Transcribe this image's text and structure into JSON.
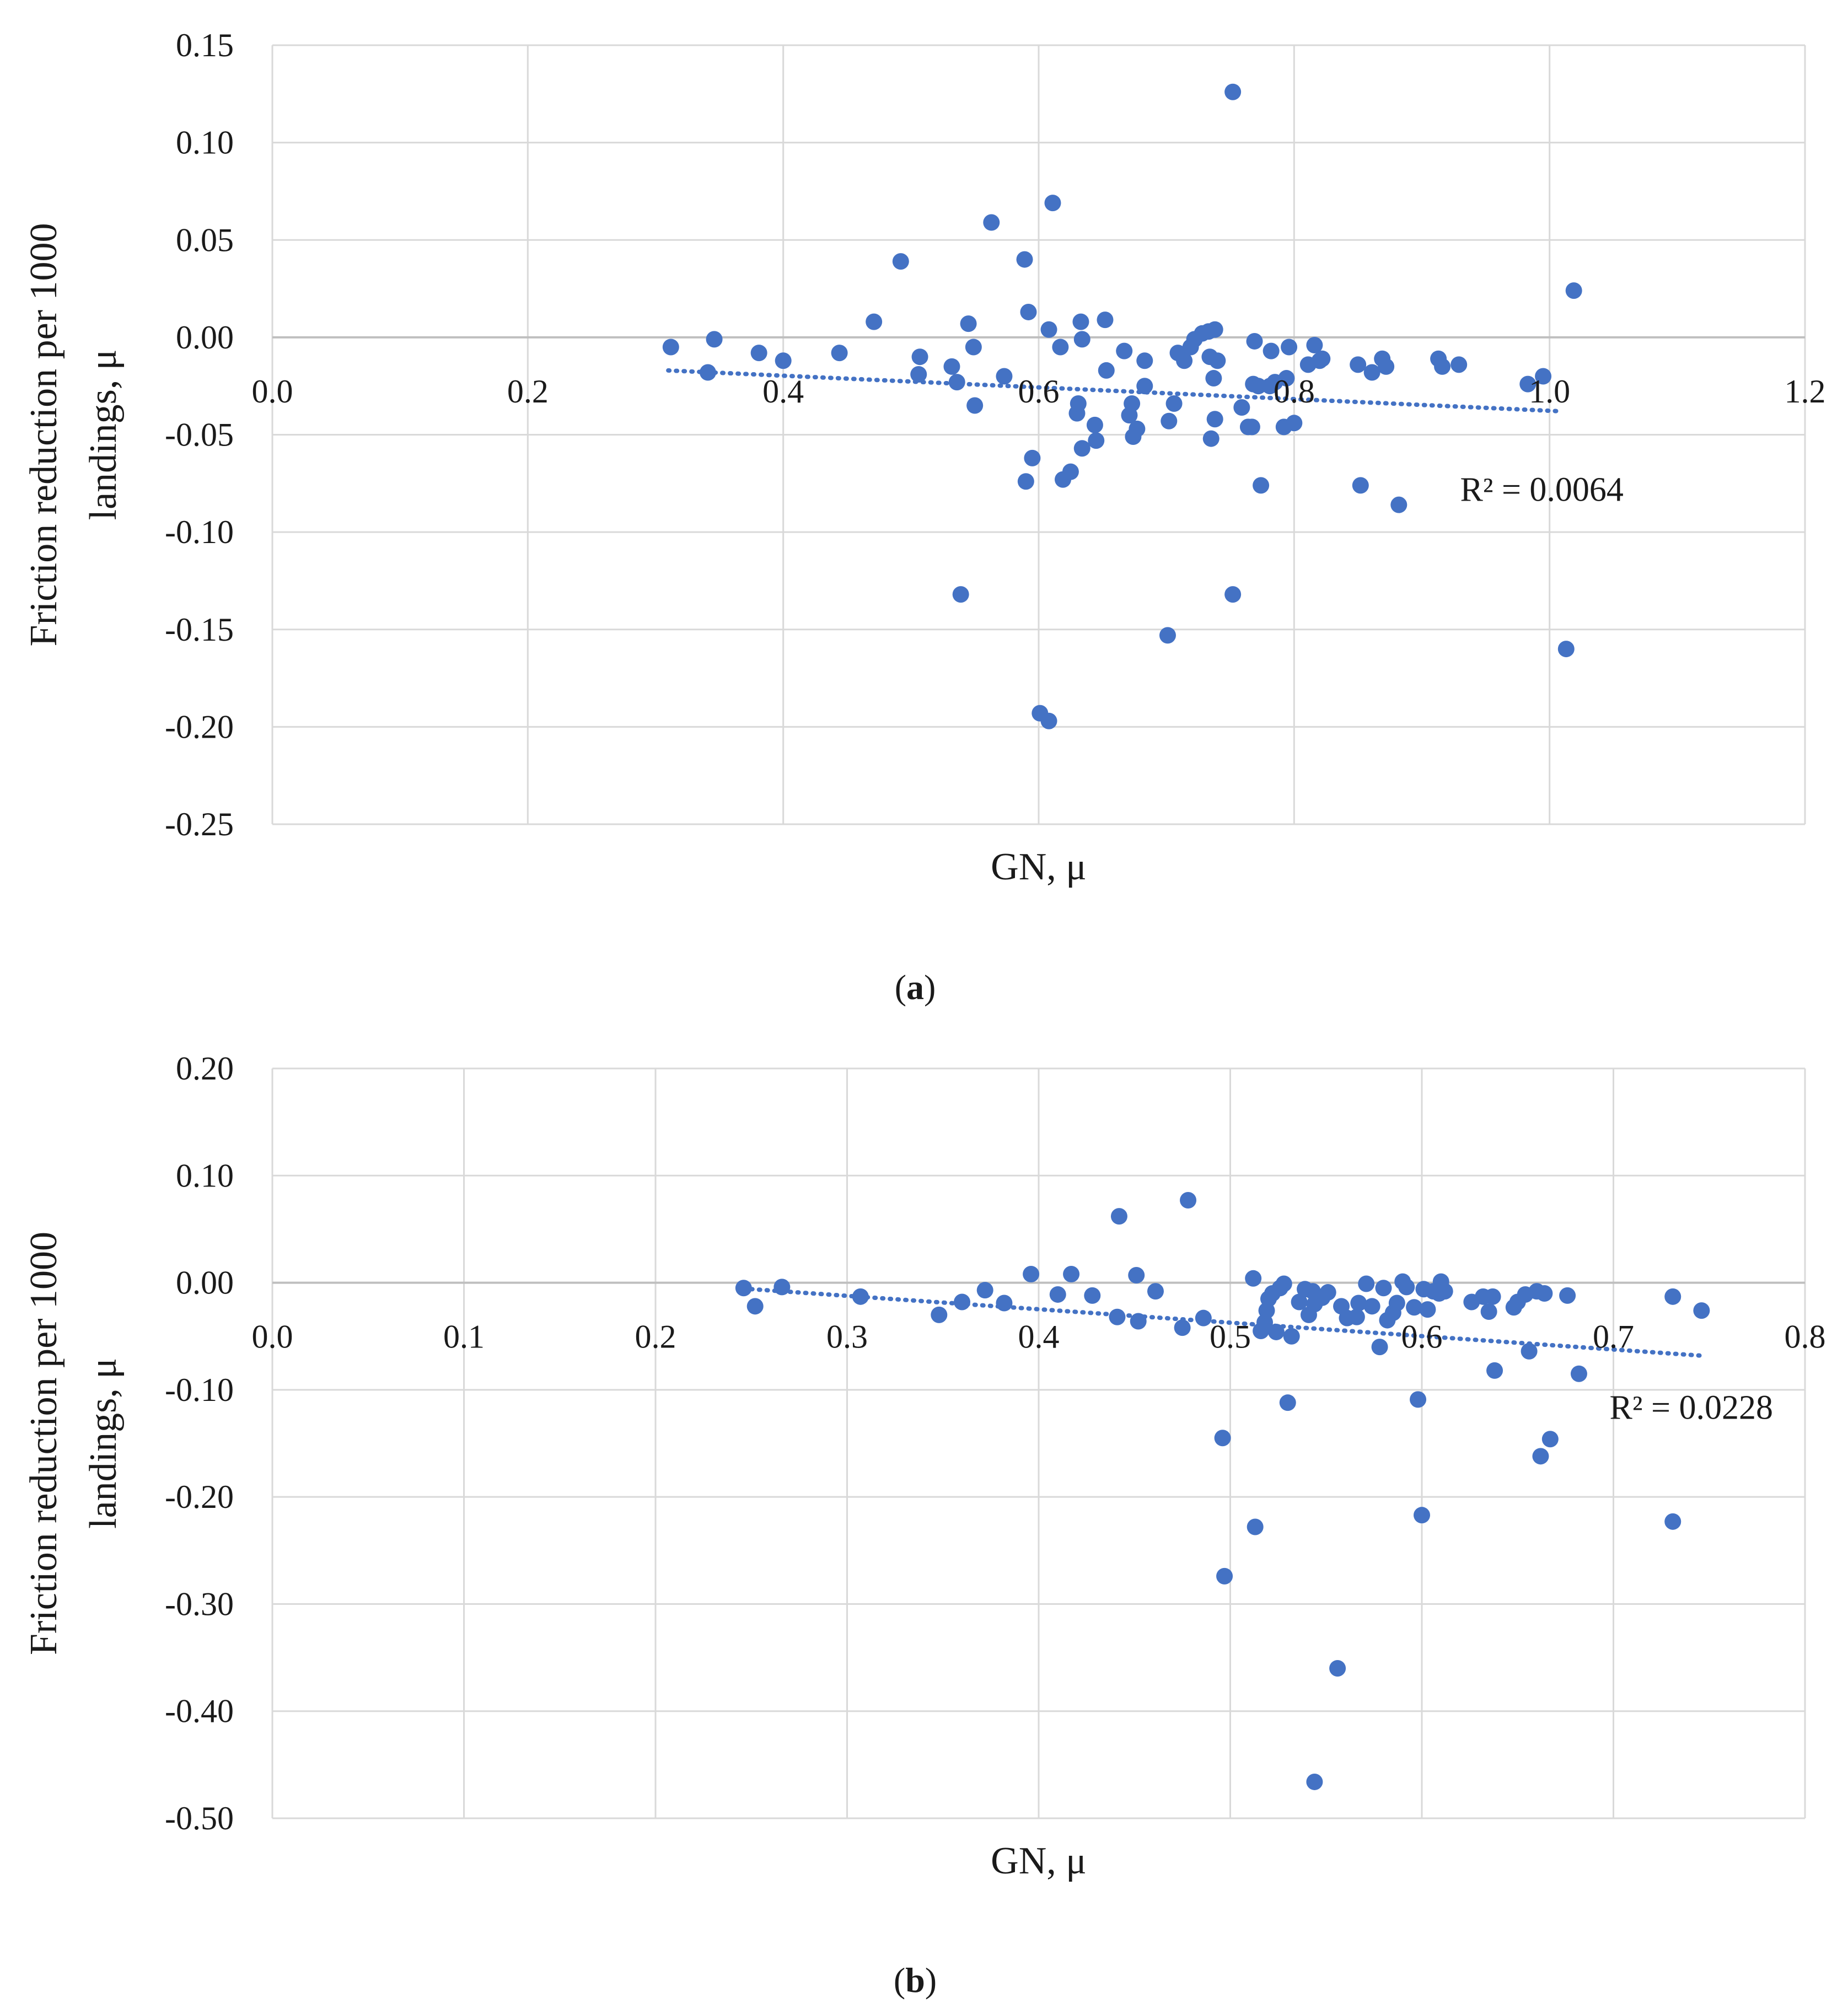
{
  "chart_data": [
    {
      "type": "scatter",
      "panel_label": "a",
      "xlabel": "GN, μ",
      "ylabel_line1": "Friction reduction per 1000",
      "ylabel_line2": "landings, μ",
      "xlim": [
        0,
        1.2
      ],
      "ylim": [
        -0.25,
        0.15
      ],
      "x_ticks": [
        0.0,
        0.2,
        0.4,
        0.6,
        0.8,
        1.0,
        1.2
      ],
      "x_tick_labels": [
        "0.0",
        "0.2",
        "0.4",
        "0.6",
        "0.8",
        "1.0",
        "1.2"
      ],
      "y_ticks": [
        0.15,
        0.1,
        0.05,
        0.0,
        -0.05,
        -0.1,
        -0.15,
        -0.2,
        -0.25
      ],
      "y_tick_labels": [
        "0.15",
        "0.10",
        "0.05",
        "0.00",
        "-0.05",
        "-0.10",
        "-0.15",
        "-0.20",
        "-0.25"
      ],
      "grid": true,
      "trendline": {
        "x": [
          0.31,
          1.01
        ],
        "y": [
          -0.017,
          -0.038
        ]
      },
      "r2_label": "R² = 0.0064",
      "r2_anchor": [
        0.93,
        -0.084
      ],
      "points": [
        [
          0.312,
          -0.005
        ],
        [
          0.346,
          -0.001
        ],
        [
          0.341,
          -0.018
        ],
        [
          0.381,
          -0.008
        ],
        [
          0.4,
          -0.012
        ],
        [
          0.444,
          -0.008
        ],
        [
          0.492,
          0.039
        ],
        [
          0.471,
          0.008
        ],
        [
          0.507,
          -0.01
        ],
        [
          0.506,
          -0.019
        ],
        [
          0.532,
          -0.015
        ],
        [
          0.536,
          -0.023
        ],
        [
          0.539,
          -0.132
        ],
        [
          0.545,
          0.007
        ],
        [
          0.549,
          -0.005
        ],
        [
          0.55,
          -0.035
        ],
        [
          0.563,
          0.059
        ],
        [
          0.573,
          -0.02
        ],
        [
          0.589,
          0.04
        ],
        [
          0.592,
          0.013
        ],
        [
          0.59,
          -0.074
        ],
        [
          0.595,
          -0.062
        ],
        [
          0.601,
          -0.193
        ],
        [
          0.608,
          -0.197
        ],
        [
          0.611,
          0.069
        ],
        [
          0.608,
          0.004
        ],
        [
          0.617,
          -0.005
        ],
        [
          0.619,
          -0.073
        ],
        [
          0.625,
          -0.069
        ],
        [
          0.63,
          -0.039
        ],
        [
          0.631,
          -0.034
        ],
        [
          0.633,
          0.008
        ],
        [
          0.634,
          -0.001
        ],
        [
          0.634,
          -0.057
        ],
        [
          0.644,
          -0.045
        ],
        [
          0.645,
          -0.053
        ],
        [
          0.652,
          0.009
        ],
        [
          0.653,
          -0.017
        ],
        [
          0.667,
          -0.007
        ],
        [
          0.671,
          -0.04
        ],
        [
          0.673,
          -0.034
        ],
        [
          0.674,
          -0.051
        ],
        [
          0.677,
          -0.047
        ],
        [
          0.683,
          -0.025
        ],
        [
          0.683,
          -0.012
        ],
        [
          0.701,
          -0.153
        ],
        [
          0.702,
          -0.043
        ],
        [
          0.706,
          -0.034
        ],
        [
          0.709,
          -0.008
        ],
        [
          0.714,
          -0.012
        ],
        [
          0.719,
          -0.005
        ],
        [
          0.722,
          -0.001
        ],
        [
          0.728,
          0.002
        ],
        [
          0.733,
          0.003
        ],
        [
          0.734,
          -0.01
        ],
        [
          0.735,
          -0.052
        ],
        [
          0.738,
          0.004
        ],
        [
          0.737,
          -0.021
        ],
        [
          0.738,
          -0.042
        ],
        [
          0.74,
          -0.012
        ],
        [
          0.752,
          0.126
        ],
        [
          0.752,
          -0.132
        ],
        [
          0.759,
          -0.036
        ],
        [
          0.764,
          -0.046
        ],
        [
          0.767,
          -0.046
        ],
        [
          0.768,
          -0.024
        ],
        [
          0.769,
          -0.002
        ],
        [
          0.772,
          -0.025
        ],
        [
          0.774,
          -0.076
        ],
        [
          0.781,
          -0.025
        ],
        [
          0.782,
          -0.007
        ],
        [
          0.785,
          -0.023
        ],
        [
          0.792,
          -0.046
        ],
        [
          0.794,
          -0.021
        ],
        [
          0.796,
          -0.005
        ],
        [
          0.8,
          -0.044
        ],
        [
          0.811,
          -0.014
        ],
        [
          0.816,
          -0.004
        ],
        [
          0.82,
          -0.012
        ],
        [
          0.822,
          -0.011
        ],
        [
          0.852,
          -0.076
        ],
        [
          0.85,
          -0.014
        ],
        [
          0.861,
          -0.018
        ],
        [
          0.869,
          -0.011
        ],
        [
          0.872,
          -0.015
        ],
        [
          0.882,
          -0.086
        ],
        [
          0.913,
          -0.011
        ],
        [
          0.916,
          -0.015
        ],
        [
          0.929,
          -0.014
        ],
        [
          0.983,
          -0.024
        ],
        [
          0.995,
          -0.02
        ],
        [
          1.013,
          -0.16
        ],
        [
          1.019,
          0.024
        ]
      ]
    },
    {
      "type": "scatter",
      "panel_label": "b",
      "xlabel": "GN, μ",
      "ylabel_line1": "Friction reduction per 1000",
      "ylabel_line2": "landings, μ",
      "xlim": [
        0,
        0.8
      ],
      "ylim": [
        -0.5,
        0.2
      ],
      "x_ticks": [
        0.0,
        0.1,
        0.2,
        0.3,
        0.4,
        0.5,
        0.6,
        0.7,
        0.8
      ],
      "x_tick_labels": [
        "0.0",
        "0.1",
        "0.2",
        "0.3",
        "0.4",
        "0.5",
        "0.6",
        "0.7",
        "0.8"
      ],
      "y_ticks": [
        0.2,
        0.1,
        0.0,
        -0.1,
        -0.2,
        -0.3,
        -0.4,
        -0.5
      ],
      "y_tick_labels": [
        "0.20",
        "0.10",
        "0.00",
        "-0.10",
        "-0.20",
        "-0.30",
        "-0.40",
        "-0.50"
      ],
      "grid": true,
      "trendline": {
        "x": [
          0.25,
          0.745
        ],
        "y": [
          -0.006,
          -0.068
        ]
      },
      "r2_label": "R² = 0.0228",
      "r2_anchor": [
        0.698,
        -0.127
      ],
      "points": [
        [
          0.246,
          -0.005
        ],
        [
          0.252,
          -0.022
        ],
        [
          0.266,
          -0.004
        ],
        [
          0.307,
          -0.013
        ],
        [
          0.348,
          -0.03
        ],
        [
          0.36,
          -0.018
        ],
        [
          0.372,
          -0.007
        ],
        [
          0.382,
          -0.019
        ],
        [
          0.396,
          0.008
        ],
        [
          0.41,
          -0.011
        ],
        [
          0.417,
          0.008
        ],
        [
          0.428,
          -0.012
        ],
        [
          0.441,
          -0.032
        ],
        [
          0.442,
          0.062
        ],
        [
          0.451,
          0.007
        ],
        [
          0.452,
          -0.036
        ],
        [
          0.461,
          -0.008
        ],
        [
          0.475,
          -0.042
        ],
        [
          0.478,
          0.077
        ],
        [
          0.486,
          -0.033
        ],
        [
          0.496,
          -0.145
        ],
        [
          0.497,
          -0.274
        ],
        [
          0.512,
          0.004
        ],
        [
          0.513,
          -0.228
        ],
        [
          0.516,
          -0.045
        ],
        [
          0.518,
          -0.037
        ],
        [
          0.519,
          -0.026
        ],
        [
          0.52,
          -0.015
        ],
        [
          0.522,
          -0.01
        ],
        [
          0.524,
          -0.046
        ],
        [
          0.526,
          -0.005
        ],
        [
          0.528,
          -0.001
        ],
        [
          0.53,
          -0.112
        ],
        [
          0.532,
          -0.05
        ],
        [
          0.536,
          -0.018
        ],
        [
          0.539,
          -0.006
        ],
        [
          0.541,
          -0.03
        ],
        [
          0.543,
          -0.008
        ],
        [
          0.544,
          -0.02
        ],
        [
          0.544,
          -0.466
        ],
        [
          0.548,
          -0.014
        ],
        [
          0.551,
          -0.009
        ],
        [
          0.556,
          -0.36
        ],
        [
          0.558,
          -0.022
        ],
        [
          0.561,
          -0.033
        ],
        [
          0.566,
          -0.032
        ],
        [
          0.567,
          -0.019
        ],
        [
          0.571,
          -0.001
        ],
        [
          0.574,
          -0.022
        ],
        [
          0.578,
          -0.06
        ],
        [
          0.58,
          -0.005
        ],
        [
          0.582,
          -0.035
        ],
        [
          0.585,
          -0.028
        ],
        [
          0.587,
          -0.019
        ],
        [
          0.59,
          0.001
        ],
        [
          0.592,
          -0.004
        ],
        [
          0.596,
          -0.023
        ],
        [
          0.598,
          -0.109
        ],
        [
          0.6,
          -0.217
        ],
        [
          0.601,
          -0.006
        ],
        [
          0.603,
          -0.025
        ],
        [
          0.606,
          -0.008
        ],
        [
          0.609,
          -0.01
        ],
        [
          0.61,
          0.001
        ],
        [
          0.612,
          -0.008
        ],
        [
          0.626,
          -0.018
        ],
        [
          0.632,
          -0.013
        ],
        [
          0.635,
          -0.027
        ],
        [
          0.637,
          -0.013
        ],
        [
          0.638,
          -0.082
        ],
        [
          0.648,
          -0.023
        ],
        [
          0.65,
          -0.018
        ],
        [
          0.654,
          -0.011
        ],
        [
          0.656,
          -0.064
        ],
        [
          0.66,
          -0.008
        ],
        [
          0.662,
          -0.162
        ],
        [
          0.664,
          -0.01
        ],
        [
          0.667,
          -0.146
        ],
        [
          0.676,
          -0.012
        ],
        [
          0.682,
          -0.085
        ],
        [
          0.731,
          -0.013
        ],
        [
          0.731,
          -0.223
        ],
        [
          0.746,
          -0.026
        ]
      ]
    }
  ],
  "colors": {
    "marker": "#4472c4",
    "trendline": "#4472c4",
    "grid": "#d9d9d9",
    "axis": "#bfbfbf"
  }
}
